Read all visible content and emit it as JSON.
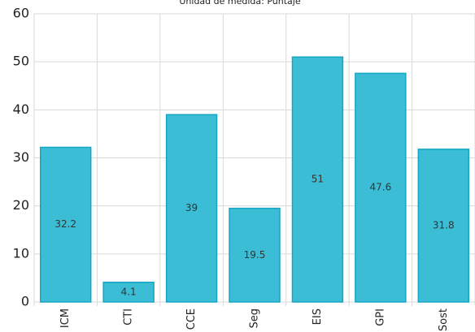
{
  "chart_data": {
    "type": "bar",
    "title": "Unidad de medida: Puntaje",
    "categories": [
      "ICM",
      "CTI",
      "CCE",
      "Seg",
      "EIS",
      "GPI",
      "Sost"
    ],
    "values": [
      32.2,
      4.1,
      39,
      19.5,
      51,
      47.6,
      31.8
    ],
    "color": "#3bbdd6",
    "ylim": [
      0,
      60
    ],
    "yticks": [
      0,
      10,
      20,
      30,
      40,
      50,
      60
    ],
    "grid": true
  }
}
